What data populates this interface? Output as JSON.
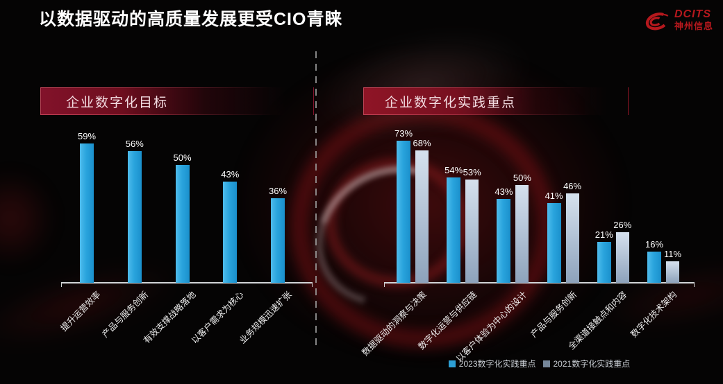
{
  "title": "以数据驱动的高质量发展更受CIO青睐",
  "logo": {
    "brand": "DCITS",
    "company": "神州信息",
    "color": "#b5181d"
  },
  "panels": {
    "left_header": "企业数字化目标",
    "right_header": "企业数字化实践重点"
  },
  "chart_data": [
    {
      "type": "bar",
      "title": "企业数字化目标",
      "categories": [
        "提升运营效率",
        "产品与服务创新",
        "有效支撑战略落地",
        "以客户需求为核心",
        "业务规模迅速扩张"
      ],
      "values": [
        59,
        56,
        50,
        43,
        36
      ],
      "unit": "%",
      "ylim": [
        0,
        65
      ],
      "grid": false,
      "bar_color": "#29a4dd",
      "data_labels": true
    },
    {
      "type": "bar",
      "title": "企业数字化实践重点",
      "categories": [
        "数据驱动的洞察与决策",
        "数字化运营与供应链",
        "以客户体验为中心的设计",
        "产品与服务创新",
        "全渠道接触点和内容",
        "数字化技术架构"
      ],
      "series": [
        {
          "name": "2023数字化实践重点",
          "color": "#29a4dd",
          "values": [
            73,
            54,
            43,
            41,
            21,
            16
          ]
        },
        {
          "name": "2021数字化实践重点",
          "color": "#a9bdd3",
          "values": [
            68,
            53,
            50,
            46,
            26,
            11
          ]
        }
      ],
      "unit": "%",
      "ylim": [
        0,
        80
      ],
      "grid": false,
      "legend_position": "bottom",
      "data_labels": true
    }
  ],
  "legend": {
    "items": [
      {
        "label": "2023数字化实践重点",
        "color": "#2d9fd4"
      },
      {
        "label": "2021数字化实践重点",
        "color": "#76879a"
      }
    ]
  }
}
